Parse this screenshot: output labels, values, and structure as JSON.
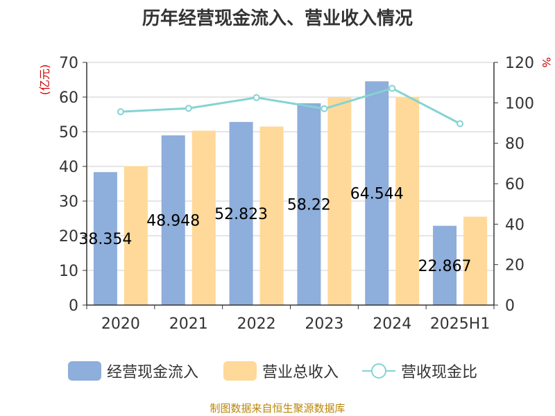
{
  "title": "历年经营现金流入、营业收入情况",
  "footer": "制图数据来自恒生聚源数据库",
  "chart_data": {
    "type": "bar",
    "categories": [
      "2020",
      "2021",
      "2022",
      "2023",
      "2024",
      "2025H1"
    ],
    "y_left_label": "(亿元)",
    "y_right_label": "%",
    "y_left_lim": [
      0,
      70
    ],
    "y_left_ticks": [
      0,
      10,
      20,
      30,
      40,
      50,
      60,
      70
    ],
    "y_right_lim": [
      0,
      120
    ],
    "y_right_ticks": [
      0,
      20,
      40,
      60,
      80,
      100,
      120
    ],
    "grid": true,
    "legend_position": "bottom",
    "series": [
      {
        "name": "经营现金流入",
        "type": "bar",
        "axis": "left",
        "color": "#8eaedb",
        "values": [
          38.354,
          48.948,
          52.823,
          58.22,
          64.544,
          22.867
        ],
        "labels": [
          "38.354",
          "48.948",
          "52.823",
          "58.22",
          "64.544",
          "22.867"
        ]
      },
      {
        "name": "营业总收入",
        "type": "bar",
        "axis": "left",
        "color": "#ffd999",
        "values": [
          40.1,
          50.3,
          51.5,
          60.0,
          60.1,
          25.5
        ]
      },
      {
        "name": "营收现金比",
        "type": "line",
        "axis": "right",
        "color": "#85d3d3",
        "values": [
          95.6,
          97.3,
          102.6,
          97.1,
          107.2,
          89.7
        ]
      }
    ]
  }
}
